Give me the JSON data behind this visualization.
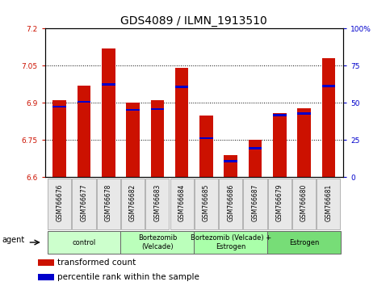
{
  "title": "GDS4089 / ILMN_1913510",
  "samples": [
    "GSM766676",
    "GSM766677",
    "GSM766678",
    "GSM766682",
    "GSM766683",
    "GSM766684",
    "GSM766685",
    "GSM766686",
    "GSM766687",
    "GSM766679",
    "GSM766680",
    "GSM766681"
  ],
  "bar_values": [
    6.91,
    6.97,
    7.12,
    6.9,
    6.91,
    7.04,
    6.85,
    6.69,
    6.75,
    6.86,
    6.88,
    7.08
  ],
  "percentile_values": [
    6.885,
    6.905,
    6.975,
    6.872,
    6.875,
    6.965,
    6.758,
    6.665,
    6.718,
    6.852,
    6.858,
    6.968
  ],
  "bar_bottom": 6.6,
  "ylim_min": 6.6,
  "ylim_max": 7.2,
  "yticks_left": [
    6.6,
    6.75,
    6.9,
    7.05,
    7.2
  ],
  "yticks_right_vals": [
    0,
    25,
    50,
    75,
    100
  ],
  "groups": [
    {
      "label": "control",
      "start": 0,
      "end": 3
    },
    {
      "label": "Bortezomib\n(Velcade)",
      "start": 3,
      "end": 6
    },
    {
      "label": "Bortezomib (Velcade) +\nEstrogen",
      "start": 6,
      "end": 9
    },
    {
      "label": "Estrogen",
      "start": 9,
      "end": 12
    }
  ],
  "green_shades": [
    "#ccffcc",
    "#bbffbb",
    "#aaffaa",
    "#77dd77"
  ],
  "bar_color": "#cc1100",
  "percentile_color": "#0000cc",
  "agent_label": "agent",
  "legend_items": [
    {
      "color": "#cc1100",
      "label": "transformed count"
    },
    {
      "color": "#0000cc",
      "label": "percentile rank within the sample"
    }
  ],
  "bar_width": 0.55,
  "title_fontsize": 10,
  "tick_fontsize": 6.5,
  "label_fontsize": 7.5
}
